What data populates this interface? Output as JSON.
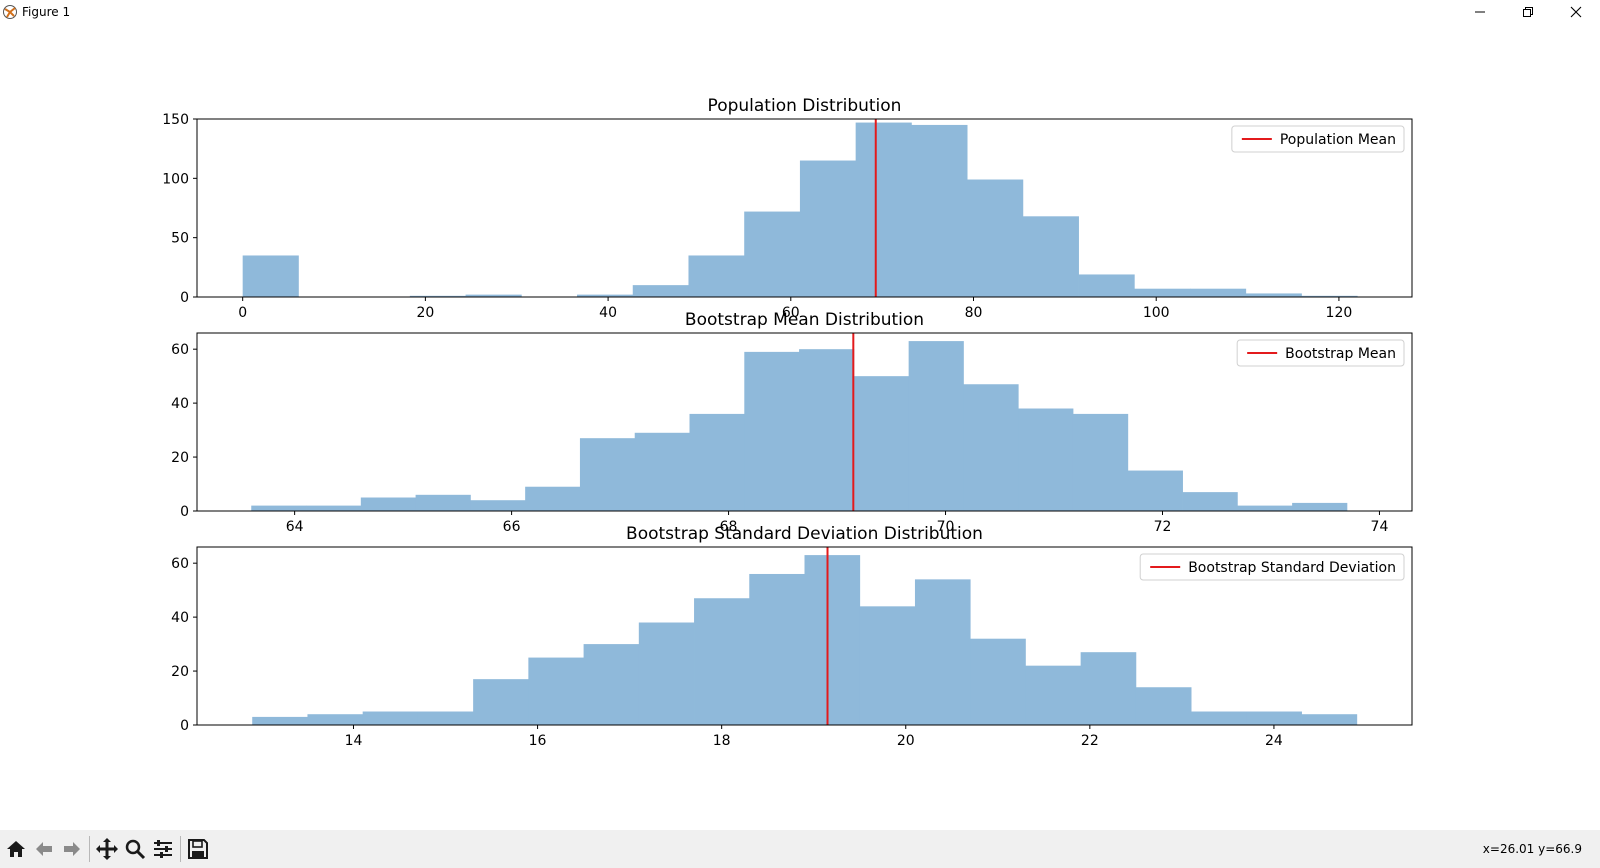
{
  "window": {
    "title": "Figure 1"
  },
  "toolbar": {
    "coords": "x=26.01 y=66.9"
  },
  "colors": {
    "bar": "#8fb9da",
    "mean_line": "#e31a1c"
  },
  "icons": [
    "matplotlib-logo-icon",
    "minimize-icon",
    "restore-icon",
    "close-icon",
    "home-icon",
    "back-arrow-icon",
    "forward-arrow-icon",
    "pan-icon",
    "zoom-icon",
    "configure-subplots-icon",
    "save-icon"
  ],
  "chart_data": [
    {
      "type": "bar",
      "title": "Population Distribution",
      "xlim": [
        -5,
        128
      ],
      "ylim": [
        0,
        150
      ],
      "xticks": [
        0,
        20,
        40,
        60,
        80,
        100,
        120
      ],
      "yticks": [
        0,
        50,
        100,
        150
      ],
      "bins_start": 0,
      "bin_width": 6.1,
      "values": [
        35,
        0,
        0,
        1,
        2,
        0,
        2,
        10,
        35,
        72,
        115,
        147,
        145,
        99,
        68,
        19,
        7,
        7,
        3,
        1
      ],
      "mean": 69.3,
      "legend": {
        "label": "Population Mean",
        "loc": "upper right"
      }
    },
    {
      "type": "bar",
      "title": "Bootstrap Mean Distribution",
      "xlim": [
        63.1,
        74.3
      ],
      "ylim": [
        0,
        66
      ],
      "xticks": [
        64,
        66,
        68,
        70,
        72,
        74
      ],
      "yticks": [
        0,
        20,
        40,
        60
      ],
      "bins_start": 63.6,
      "bin_width": 0.505,
      "values": [
        2,
        2,
        5,
        6,
        4,
        9,
        27,
        29,
        36,
        59,
        60,
        50,
        63,
        47,
        38,
        36,
        15,
        7,
        2,
        3
      ],
      "mean": 69.15,
      "legend": {
        "label": "Bootstrap Mean",
        "loc": "upper right"
      }
    },
    {
      "type": "bar",
      "title": "Bootstrap Standard Deviation Distribution",
      "xlim": [
        12.3,
        25.5
      ],
      "ylim": [
        0,
        66
      ],
      "xticks": [
        14,
        16,
        18,
        20,
        22,
        24
      ],
      "yticks": [
        0,
        20,
        40,
        60
      ],
      "bins_start": 12.9,
      "bin_width": 0.6,
      "values": [
        3,
        4,
        5,
        5,
        17,
        25,
        30,
        38,
        47,
        56,
        63,
        44,
        54,
        32,
        22,
        27,
        14,
        5,
        5,
        4
      ],
      "mean": 19.15,
      "legend": {
        "label": "Bootstrap Standard Deviation",
        "loc": "upper right"
      }
    }
  ]
}
